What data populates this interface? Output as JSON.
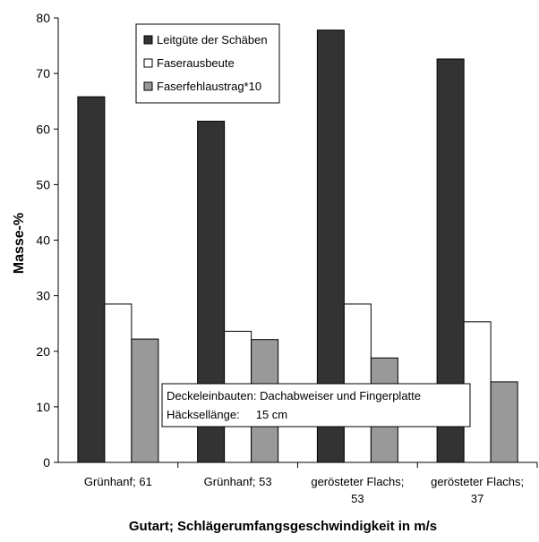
{
  "chart_data": {
    "type": "bar",
    "title": "",
    "xlabel": "Gutart; Schlägerumfangsgeschwindigkeit in m/s",
    "ylabel": "Masse-%",
    "ylim": [
      0,
      80
    ],
    "yticks": [
      0,
      10,
      20,
      30,
      40,
      50,
      60,
      70,
      80
    ],
    "grid": false,
    "legend_position": "top-center",
    "categories": [
      "Grünhanf; 61",
      "Grünhanf; 53",
      "gerösteter Flachs; 53",
      "gerösteter Flachs; 37"
    ],
    "category_lines": [
      [
        "Grünhanf; 61"
      ],
      [
        "Grünhanf; 53"
      ],
      [
        "gerösteter Flachs;",
        "53"
      ],
      [
        "gerösteter Flachs;",
        "37"
      ]
    ],
    "series": [
      {
        "name": "Leitgüte der Schäben",
        "color": "#333333",
        "values": [
          65.8,
          61.4,
          77.8,
          72.6
        ]
      },
      {
        "name": "Faserausbeute",
        "color": "#ffffff",
        "values": [
          28.5,
          23.6,
          28.5,
          25.3
        ]
      },
      {
        "name": "Faserfehlaustrag*10",
        "color": "#999999",
        "values": [
          22.2,
          22.1,
          18.8,
          14.5
        ]
      }
    ],
    "annotation": {
      "lines": [
        "Deckeleinbauten: Dachabweiser und Fingerplatte",
        "Häcksellänge:     15 cm"
      ]
    }
  }
}
